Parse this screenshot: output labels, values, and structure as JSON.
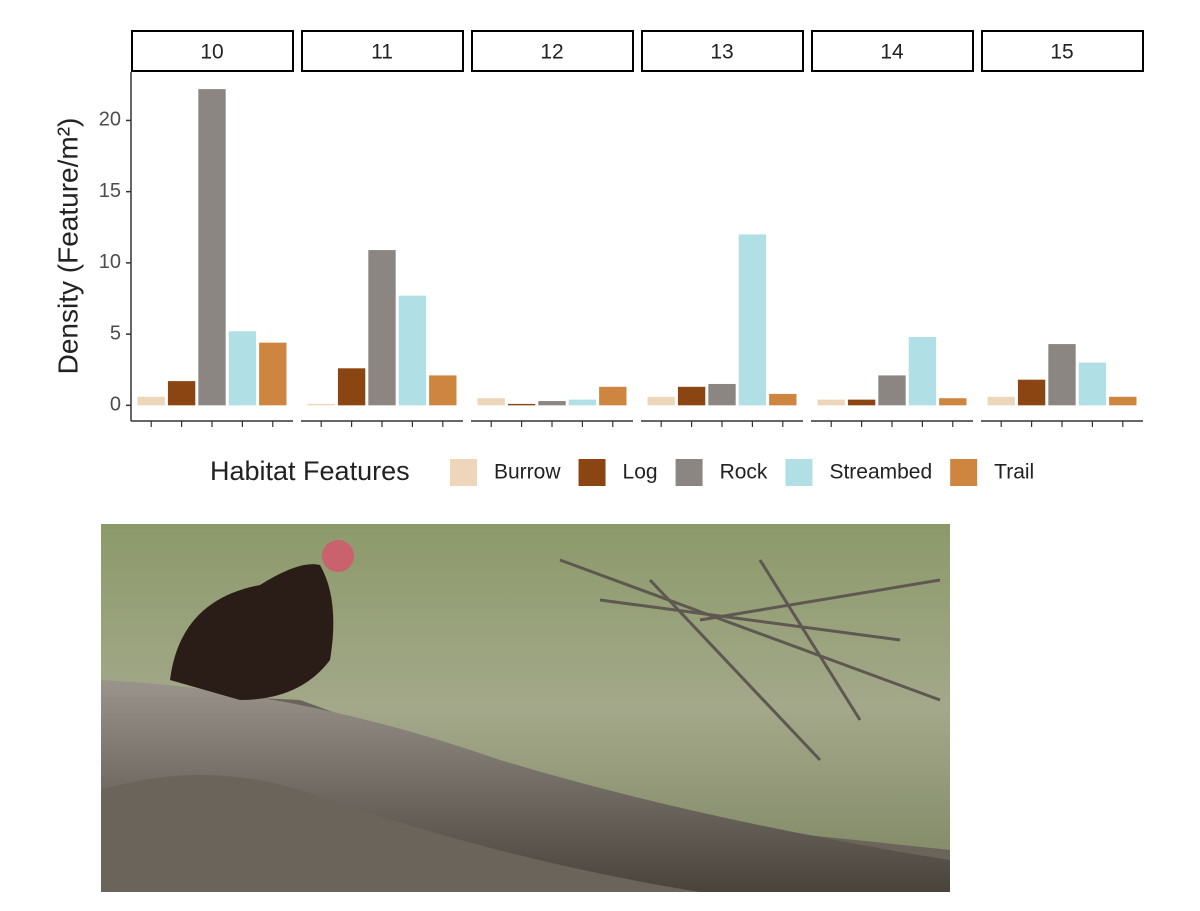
{
  "chart_data": {
    "type": "bar",
    "y_label": "Density (Feature/m²)",
    "legend_title": "Habitat Features",
    "categories": [
      "10",
      "11",
      "12",
      "13",
      "14",
      "15"
    ],
    "series": [
      {
        "name": "Burrow",
        "color": "#edd6ba",
        "values": [
          0.6,
          0.1,
          0.5,
          0.6,
          0.4,
          0.6
        ]
      },
      {
        "name": "Log",
        "color": "#8b4513",
        "values": [
          1.7,
          2.6,
          0.1,
          1.3,
          0.4,
          1.8
        ]
      },
      {
        "name": "Rock",
        "color": "#8b8682",
        "values": [
          22.2,
          10.9,
          0.3,
          1.5,
          2.1,
          4.3
        ]
      },
      {
        "name": "Streambed",
        "color": "#b0dfe5",
        "values": [
          5.2,
          7.7,
          0.4,
          12.0,
          4.8,
          3.0
        ]
      },
      {
        "name": "Trail",
        "color": "#cd853f",
        "values": [
          4.4,
          2.1,
          1.3,
          0.8,
          0.5,
          0.6
        ]
      }
    ],
    "ylim": [
      -1.1,
      23.4
    ],
    "yticks": [
      0,
      5,
      10,
      15,
      20
    ]
  }
}
